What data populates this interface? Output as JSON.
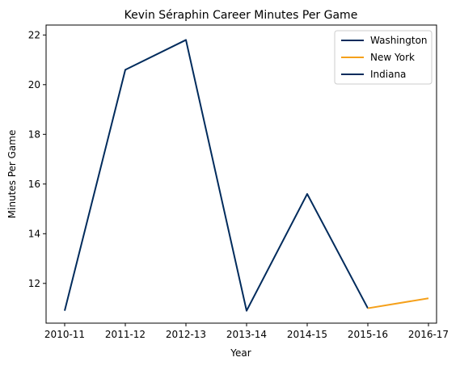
{
  "chart_data": {
    "type": "line",
    "title": "Kevin Séraphin Career Minutes Per Game",
    "xlabel": "Year",
    "ylabel": "Minutes Per Game",
    "categories": [
      "2010-11",
      "2011-12",
      "2012-13",
      "2013-14",
      "2014-15",
      "2015-16",
      "2016-17"
    ],
    "ylim": [
      10.4,
      22.4
    ],
    "yticks": [
      12,
      14,
      16,
      18,
      20,
      22
    ],
    "grid": false,
    "legend_position": "top-right",
    "series": [
      {
        "name": "Washington",
        "color": "#002b5c",
        "x": [
          "2010-11",
          "2011-12",
          "2012-13",
          "2013-14",
          "2014-15",
          "2015-16"
        ],
        "values": [
          10.9,
          20.6,
          21.8,
          10.9,
          15.6,
          11.0
        ]
      },
      {
        "name": "New York",
        "color": "#f5a01a",
        "x": [
          "2015-16",
          "2016-17"
        ],
        "values": [
          11.0,
          11.4
        ]
      },
      {
        "name": "Indiana",
        "color": "#002b5c",
        "x": [],
        "values": []
      }
    ]
  }
}
